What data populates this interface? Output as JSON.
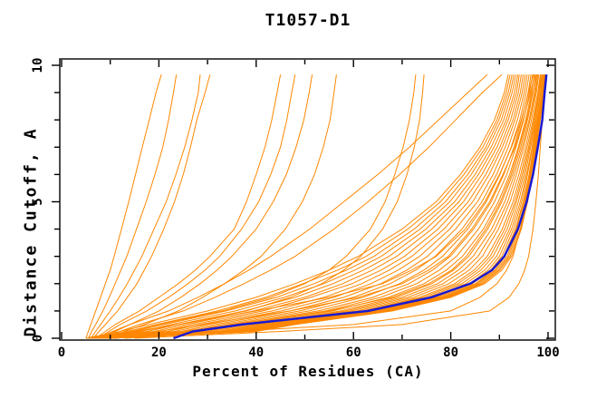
{
  "chart": {
    "title": "T1057-D1",
    "xlabel": "Percent of Residues (CA)",
    "ylabel": "Distance Cutoff, A"
  },
  "colors": {
    "model": "#ff8700",
    "best": "#1a1ad1",
    "axis": "#000000",
    "background": "#ffffff"
  },
  "chart_data": {
    "type": "line",
    "title": "T1057-D1",
    "xlabel": "Percent of Residues (CA)",
    "ylabel": "Distance Cutoff, A",
    "xlim": [
      0,
      100
    ],
    "ylim": [
      0,
      10
    ],
    "x_major_ticks": [
      0,
      20,
      40,
      60,
      80,
      100
    ],
    "x_minor_step": 10,
    "y_major_ticks": [
      0,
      5,
      10
    ],
    "y_minor_step": 1,
    "grid": false,
    "legend": null,
    "series_description": "Each curve: percent of CA residues (x) under distance cutoff (y). Orange = predicted models, blue = best model.",
    "cutoffs": [
      0,
      0.25,
      0.5,
      1,
      1.5,
      2,
      2.5,
      3,
      4,
      5,
      6,
      7,
      8,
      9,
      9.66
    ],
    "best": [
      23,
      27,
      37,
      63,
      76,
      84,
      88.5,
      91,
      93.8,
      95.6,
      96.9,
      97.9,
      98.8,
      99.3,
      99.66
    ],
    "models": [
      [
        5,
        12,
        18,
        30,
        40,
        48,
        55,
        61,
        70,
        77,
        82,
        86,
        89,
        91,
        91.8
      ],
      [
        5.3,
        13.6,
        19.5,
        32,
        42,
        49.6,
        56.8,
        62.6,
        71.2,
        77.9,
        82.7,
        86.6,
        89.5,
        91.4,
        92.2
      ],
      [
        5.5,
        14.8,
        21,
        33.8,
        44.2,
        51.9,
        58.6,
        64.2,
        72.5,
        78.9,
        83.5,
        87.2,
        89.9,
        91.8,
        92.6
      ],
      [
        5.8,
        16.2,
        22.5,
        35.7,
        45.8,
        53.9,
        60.3,
        65.7,
        73.7,
        79.8,
        84.2,
        87.7,
        90.4,
        92.2,
        93
      ],
      [
        6,
        17.6,
        24,
        37.6,
        48,
        55.8,
        62.1,
        67.3,
        74.9,
        80.8,
        85,
        88.3,
        90.9,
        92.6,
        93.4
      ],
      [
        6.3,
        19,
        25.5,
        39.5,
        50,
        57.8,
        63.9,
        68.9,
        76.1,
        81.7,
        85.7,
        88.9,
        91.4,
        93.1,
        93.8
      ],
      [
        6.5,
        20.4,
        27,
        41.4,
        51.2,
        59.7,
        65.7,
        70.5,
        77.4,
        82.6,
        86.4,
        89.5,
        91.8,
        93.5,
        94.1
      ],
      [
        6.8,
        21.8,
        28.5,
        43.3,
        54,
        61.7,
        67.4,
        72,
        78.6,
        83.6,
        87.2,
        90.1,
        92.3,
        93.9,
        94.5
      ],
      [
        7,
        23.2,
        30,
        45.2,
        56,
        63.6,
        69.2,
        73.6,
        79.8,
        84.5,
        87.9,
        90.6,
        92.8,
        94.3,
        94.9
      ],
      [
        7.3,
        24.6,
        31.5,
        47.1,
        58,
        65.6,
        71,
        75.2,
        81,
        85.5,
        88.7,
        91.2,
        93.2,
        94.7,
        95.3
      ],
      [
        7.5,
        26,
        33,
        49,
        60,
        67.5,
        72.8,
        76.8,
        82.3,
        86.4,
        89.4,
        91.8,
        93.7,
        95.1,
        95.7
      ],
      [
        7.8,
        27.4,
        34.5,
        50.9,
        62,
        69.5,
        74.5,
        78.3,
        83.5,
        87.3,
        90.1,
        92.4,
        94.2,
        95.5,
        96.1
      ],
      [
        8,
        28.8,
        36,
        52.8,
        64,
        71.4,
        76.3,
        79.9,
        84.7,
        88.3,
        90.9,
        93,
        94.6,
        95.9,
        96.5
      ],
      [
        8.2,
        29.9,
        37.2,
        54.3,
        65.6,
        73,
        77.7,
        81.2,
        85.7,
        89,
        91.5,
        93.4,
        95,
        96.2,
        96.8
      ],
      [
        8.4,
        31,
        38.4,
        55.8,
        67.2,
        74.5,
        79.1,
        82.4,
        86.7,
        89.8,
        92.1,
        93.9,
        95.4,
        96.6,
        97.1
      ],
      [
        8.6,
        32.2,
        39.6,
        57.4,
        68.8,
        76.1,
        80.6,
        83.7,
        87.6,
        90.5,
        92.7,
        94.4,
        95.8,
        96.9,
        97.4
      ],
      [
        8.8,
        33,
        40.5,
        58.5,
        70,
        77.3,
        81.6,
        84.6,
        88.4,
        91.1,
        93.1,
        94.7,
        96.1,
        97.2,
        97.7
      ],
      [
        8.9,
        33.8,
        41.4,
        59.6,
        71.2,
        78.4,
        82.7,
        85.6,
        89.1,
        91.7,
        93.5,
        95,
        96.3,
        97.4,
        97.9
      ],
      [
        9.1,
        34.7,
        42.3,
        60.8,
        72.4,
        79.6,
        83.8,
        86.5,
        89.8,
        92.2,
        94,
        95.4,
        96.6,
        97.6,
        98.1
      ],
      [
        9.2,
        35.5,
        43.2,
        61.9,
        73.6,
        80.8,
        84.8,
        87.5,
        90.6,
        92.8,
        94.4,
        95.7,
        96.9,
        97.9,
        98.4
      ],
      [
        9.3,
        36.1,
        43.8,
        62.7,
        74.4,
        81.5,
        85.5,
        88.1,
        91.1,
        93.2,
        94.7,
        96,
        97.1,
        98.1,
        98.5
      ],
      [
        9.4,
        36.6,
        44.4,
        63.4,
        75.2,
        82.3,
        86.2,
        88.7,
        91.6,
        93.5,
        95,
        96.2,
        97.3,
        98.2,
        98.7
      ],
      [
        9.5,
        37.2,
        45,
        64.2,
        76,
        83.1,
        87,
        89.4,
        92.1,
        93.9,
        95.3,
        96.4,
        97.5,
        98.4,
        98.8
      ],
      [
        9.6,
        37.8,
        45.6,
        65,
        76.8,
        83.9,
        87.7,
        90,
        92.5,
        94.3,
        95.6,
        96.7,
        97.6,
        98.5,
        99
      ],
      [
        9.7,
        38.2,
        46.1,
        65.5,
        77.4,
        84.5,
        88.2,
        90.5,
        92.9,
        94.6,
        95.8,
        96.8,
        97.8,
        98.7,
        99.1
      ],
      [
        9.8,
        38.6,
        46.5,
        66.1,
        78,
        85.1,
        88.7,
        90.9,
        93.3,
        94.9,
        96.1,
        97,
        97.9,
        98.8,
        99.2
      ],
      [
        9.8,
        38.9,
        46.8,
        66.5,
        78.4,
        85.4,
        89.1,
        91.2,
        93.5,
        95,
        96.2,
        97.1,
        98,
        98.9,
        99.3
      ],
      [
        9.9,
        39.2,
        47.1,
        66.9,
        78.8,
        85.8,
        89.4,
        91.6,
        93.8,
        95.2,
        96.4,
        97.3,
        98.1,
        99,
        99.4
      ],
      [
        9.9,
        39.4,
        47.4,
        67.2,
        79.2,
        86.2,
        89.8,
        91.9,
        94,
        95.4,
        96.5,
        97.4,
        98.2,
        99.1,
        99.4
      ],
      [
        10,
        39.7,
        47.7,
        67.6,
        79.6,
        86.6,
        90.1,
        92.2,
        94.3,
        95.6,
        96.7,
        97.5,
        98.3,
        99.1,
        99.5
      ],
      [
        10,
        40,
        48,
        68,
        80,
        87,
        90.5,
        92.5,
        94.5,
        95.8,
        96.8,
        97.6,
        98.4,
        99.2,
        99.6
      ],
      [
        6,
        15,
        24,
        40,
        55,
        66,
        72,
        77,
        83,
        87,
        90,
        92.5,
        94.5,
        96,
        96.9
      ],
      [
        7,
        20,
        29,
        47,
        61,
        70,
        75.5,
        79.5,
        84.3,
        88,
        90.7,
        93.2,
        94.9,
        96.4,
        97.2
      ],
      [
        8.5,
        25,
        35,
        55,
        68,
        75.5,
        80.2,
        83.2,
        87.2,
        90.2,
        92.4,
        94.1,
        95.6,
        96.8,
        97.6
      ],
      [
        5,
        5.5,
        6,
        7,
        8,
        9,
        10,
        10.8,
        12.3,
        13.8,
        15.2,
        16.6,
        18,
        19.4,
        20.5
      ],
      [
        5.5,
        6.2,
        7,
        8.5,
        9.8,
        11,
        12.2,
        13.4,
        15.4,
        17.4,
        19.2,
        20.8,
        22,
        23,
        23.6
      ],
      [
        6,
        7,
        8,
        10,
        11.8,
        13.5,
        15,
        16.5,
        19,
        21.5,
        23.5,
        25.3,
        26.8,
        28.1,
        28.5
      ],
      [
        6.5,
        7.7,
        9,
        11.5,
        13.5,
        15.5,
        17,
        18.5,
        21,
        23.2,
        25,
        26.5,
        27.8,
        29.5,
        30.5
      ],
      [
        7,
        9,
        11,
        16,
        20,
        24,
        27.5,
        30.5,
        35.5,
        38,
        40,
        41.8,
        43.2,
        44.3,
        45
      ],
      [
        7.5,
        9.7,
        12,
        17.5,
        22,
        26,
        29.5,
        32.5,
        37,
        40.5,
        43,
        45,
        46.3,
        47.3,
        48
      ],
      [
        8,
        11,
        14,
        20,
        24.5,
        28.5,
        32,
        35,
        40,
        43.5,
        46.2,
        48.2,
        49.8,
        50.9,
        51.5
      ],
      [
        9,
        13,
        17,
        24,
        29,
        33.5,
        37.5,
        41,
        46,
        49.5,
        52,
        53.8,
        55.2,
        56,
        56.5
      ],
      [
        8,
        14,
        20,
        33,
        43,
        50,
        55,
        58.5,
        63.5,
        66.5,
        68.5,
        70.2,
        71.5,
        72.4,
        72.8
      ],
      [
        9,
        16,
        24,
        38,
        47,
        53.5,
        58,
        61.5,
        66,
        69,
        71,
        72.5,
        73.6,
        74.2,
        74.5
      ],
      [
        7,
        10.5,
        14,
        22,
        28,
        33.5,
        38.5,
        43,
        51,
        58,
        65,
        71.5,
        77.5,
        83.5,
        87.5
      ],
      [
        8,
        12,
        16,
        25,
        31.5,
        37.5,
        43,
        48,
        56,
        63,
        69.5,
        75.5,
        81,
        86.5,
        90.5
      ],
      [
        15,
        45,
        70,
        88,
        92,
        94,
        95.2,
        96,
        96.9,
        97.5,
        98,
        98.4,
        98.8,
        99.3,
        99.6
      ],
      [
        13,
        35,
        60,
        80,
        86,
        89.5,
        91.5,
        92.8,
        94.3,
        95.4,
        96.3,
        97.1,
        97.9,
        98.8,
        99.4
      ]
    ]
  }
}
